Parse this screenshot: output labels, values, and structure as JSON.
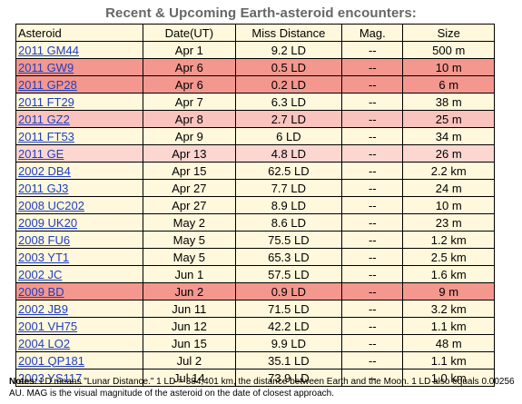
{
  "title": "Recent & Upcoming Earth-asteroid encounters:",
  "headers": [
    "Asteroid",
    "Date(UT)",
    "Miss Distance",
    "Mag.",
    "Size"
  ],
  "rows": [
    {
      "name": "2011 GM44",
      "date": "Apr 1",
      "miss": "9.2 LD",
      "mag": "--",
      "size": "500 m",
      "highlight": "none"
    },
    {
      "name": "2011 GW9",
      "date": "Apr 6",
      "miss": "0.5 LD",
      "mag": "--",
      "size": "10 m",
      "highlight": "strong"
    },
    {
      "name": "2011 GP28",
      "date": "Apr 6",
      "miss": "0.2 LD",
      "mag": "--",
      "size": "6 m",
      "highlight": "strong"
    },
    {
      "name": "2011 FT29",
      "date": "Apr 7",
      "miss": "6.3 LD",
      "mag": "--",
      "size": "38 m",
      "highlight": "none"
    },
    {
      "name": "2011 GZ2",
      "date": "Apr 8",
      "miss": "2.7 LD",
      "mag": "--",
      "size": "25 m",
      "highlight": "medium"
    },
    {
      "name": "2011 FT53",
      "date": "Apr 9",
      "miss": "6 LD",
      "mag": "--",
      "size": "34 m",
      "highlight": "none"
    },
    {
      "name": "2011 GE",
      "date": "Apr 13",
      "miss": "4.8 LD",
      "mag": "--",
      "size": "26 m",
      "highlight": "light"
    },
    {
      "name": "2002 DB4",
      "date": "Apr 15",
      "miss": "62.5 LD",
      "mag": "--",
      "size": "2.2 km",
      "highlight": "none"
    },
    {
      "name": "2011 GJ3",
      "date": "Apr 27",
      "miss": "7.7 LD",
      "mag": "--",
      "size": "24 m",
      "highlight": "none"
    },
    {
      "name": "2008 UC202",
      "date": "Apr 27",
      "miss": "8.9 LD",
      "mag": "--",
      "size": "10 m",
      "highlight": "none"
    },
    {
      "name": "2009 UK20",
      "date": "May 2",
      "miss": "8.6 LD",
      "mag": "--",
      "size": "23 m",
      "highlight": "none"
    },
    {
      "name": "2008 FU6",
      "date": "May 5",
      "miss": "75.5 LD",
      "mag": "--",
      "size": "1.2 km",
      "highlight": "none"
    },
    {
      "name": "2003 YT1",
      "date": "May 5",
      "miss": "65.3 LD",
      "mag": "--",
      "size": "2.5 km",
      "highlight": "none"
    },
    {
      "name": "2002 JC",
      "date": "Jun 1",
      "miss": "57.5 LD",
      "mag": "--",
      "size": "1.6 km",
      "highlight": "none"
    },
    {
      "name": "2009 BD",
      "date": "Jun 2",
      "miss": "0.9 LD",
      "mag": "--",
      "size": "9 m",
      "highlight": "strong"
    },
    {
      "name": "2002 JB9",
      "date": "Jun 11",
      "miss": "71.5 LD",
      "mag": "--",
      "size": "3.2 km",
      "highlight": "none"
    },
    {
      "name": "2001 VH75",
      "date": "Jun 12",
      "miss": "42.2 LD",
      "mag": "--",
      "size": "1.1 km",
      "highlight": "none"
    },
    {
      "name": "2004 LO2",
      "date": "Jun 15",
      "miss": "9.9 LD",
      "mag": "--",
      "size": "48 m",
      "highlight": "none"
    },
    {
      "name": "2001 QP181",
      "date": "Jul 2",
      "miss": "35.1 LD",
      "mag": "--",
      "size": "1.1 km",
      "highlight": "none"
    },
    {
      "name": "2003 YS117",
      "date": "Jul 14",
      "miss": "73.9 LD",
      "mag": "--",
      "size": "1.0 km",
      "highlight": "none"
    }
  ],
  "colors": {
    "row_background": "#fff8dc",
    "highlight_strong": "#f4978e",
    "highlight_medium": "#fac3bd",
    "highlight_light": "#fcd6d1",
    "link": "#1f3fbf",
    "title": "#666666"
  },
  "notes": {
    "label": "Notes:",
    "text": " LD means \"Lunar Distance.\" 1 LD = 384,401 km, the distance between Earth and the Moon. 1 LD also equals 0.00256 AU. MAG is the visual magnitude of the asteroid on the date of closest approach."
  }
}
